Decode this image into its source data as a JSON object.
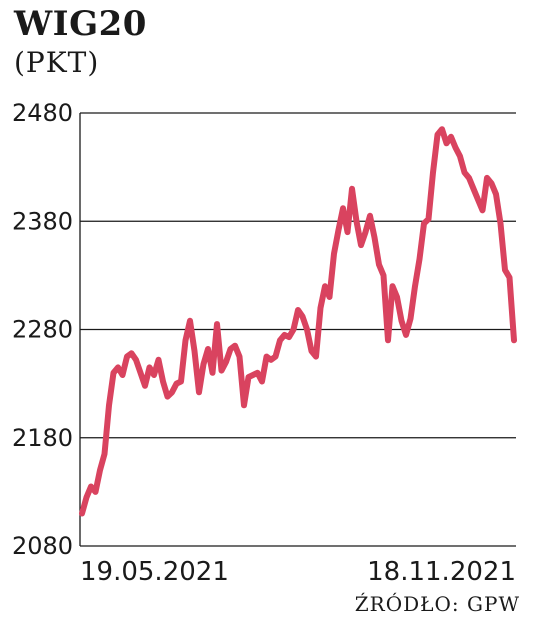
{
  "chart_data": {
    "type": "line",
    "title": "WIG20",
    "subtitle": "(PKT)",
    "source": "ŹRÓDŁO: GPW",
    "xlabel": "",
    "ylabel": "",
    "ylim": [
      2080,
      2480
    ],
    "yticks": [
      "2480",
      "2380",
      "2280",
      "2180",
      "2080"
    ],
    "x_tick_labels": [
      "19.05.2021",
      "18.11.2021"
    ],
    "grid": true,
    "line_color": "#d9435f",
    "series": [
      {
        "values": [
          2110,
          2125,
          2135,
          2130,
          2150,
          2165,
          2210,
          2240,
          2245,
          2238,
          2255,
          2258,
          2252,
          2240,
          2228,
          2245,
          2238,
          2252,
          2232,
          2218,
          2222,
          2230,
          2232,
          2270,
          2288,
          2260,
          2222,
          2248,
          2262,
          2240,
          2285,
          2242,
          2250,
          2262,
          2265,
          2255,
          2210,
          2236,
          2238,
          2240,
          2232,
          2255,
          2252,
          2255,
          2270,
          2275,
          2273,
          2280,
          2298,
          2292,
          2280,
          2260,
          2255,
          2300,
          2320,
          2310,
          2350,
          2372,
          2392,
          2370,
          2410,
          2380,
          2358,
          2370,
          2385,
          2365,
          2340,
          2330,
          2270,
          2320,
          2310,
          2288,
          2275,
          2290,
          2320,
          2345,
          2378,
          2382,
          2425,
          2460,
          2465,
          2452,
          2458,
          2448,
          2440,
          2425,
          2420,
          2410,
          2400,
          2390,
          2420,
          2415,
          2405,
          2378,
          2335,
          2328,
          2270
        ]
      }
    ]
  }
}
